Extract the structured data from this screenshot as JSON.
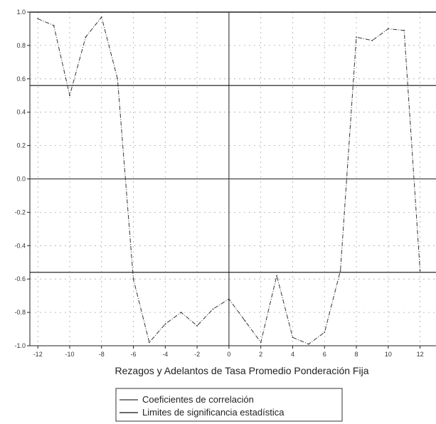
{
  "chart_data": {
    "type": "line",
    "title": "",
    "xlabel": "Rezagos y Adelantos de Tasa Promedio Ponderación Fija",
    "ylabel": "",
    "xlim": [
      -12.5,
      13
    ],
    "ylim": [
      -1.0,
      1.0
    ],
    "x_ticks": [
      -12,
      -10,
      -8,
      -6,
      -4,
      -2,
      0,
      2,
      4,
      6,
      8,
      10,
      12
    ],
    "x_tick_labels": [
      "-12",
      "-10",
      "-8",
      "-6",
      "-4",
      "-2",
      "0",
      "2",
      "4",
      "6",
      "8",
      "10",
      "12"
    ],
    "y_ticks": [
      1.0,
      0.8,
      0.6,
      0.4,
      0.2,
      0.0,
      -0.2,
      -0.4,
      -0.6,
      -0.8,
      -1.0
    ],
    "y_tick_labels": [
      "1.0",
      "0.8",
      "0.6",
      "0.4",
      "0.2",
      "0.0",
      "-0.2",
      "-0.4",
      "-0.6",
      "-0.8",
      "-1.0"
    ],
    "grid": "dotted",
    "legend_position": "bottom-center",
    "series": [
      {
        "name": "Coeficientes de correlación",
        "color": "#333333",
        "style": "dash-dot",
        "x": [
          -12,
          -11,
          -10,
          -9,
          -8,
          -7,
          -6,
          -5,
          -4,
          -3,
          -2,
          -1,
          0,
          1,
          2,
          3,
          4,
          5,
          6,
          7,
          8,
          9,
          10,
          11,
          12
        ],
        "y": [
          0.96,
          0.92,
          0.5,
          0.85,
          0.97,
          0.6,
          -0.6,
          -0.98,
          -0.87,
          -0.8,
          -0.88,
          -0.78,
          -0.72,
          -0.85,
          -0.98,
          -0.58,
          -0.95,
          -0.99,
          -0.92,
          -0.55,
          0.85,
          0.83,
          0.9,
          0.89,
          -0.55
        ]
      },
      {
        "name": "Limites de significancia estadística",
        "color": "#111111",
        "style": "solid",
        "upper": 0.56,
        "lower": -0.56
      }
    ]
  }
}
